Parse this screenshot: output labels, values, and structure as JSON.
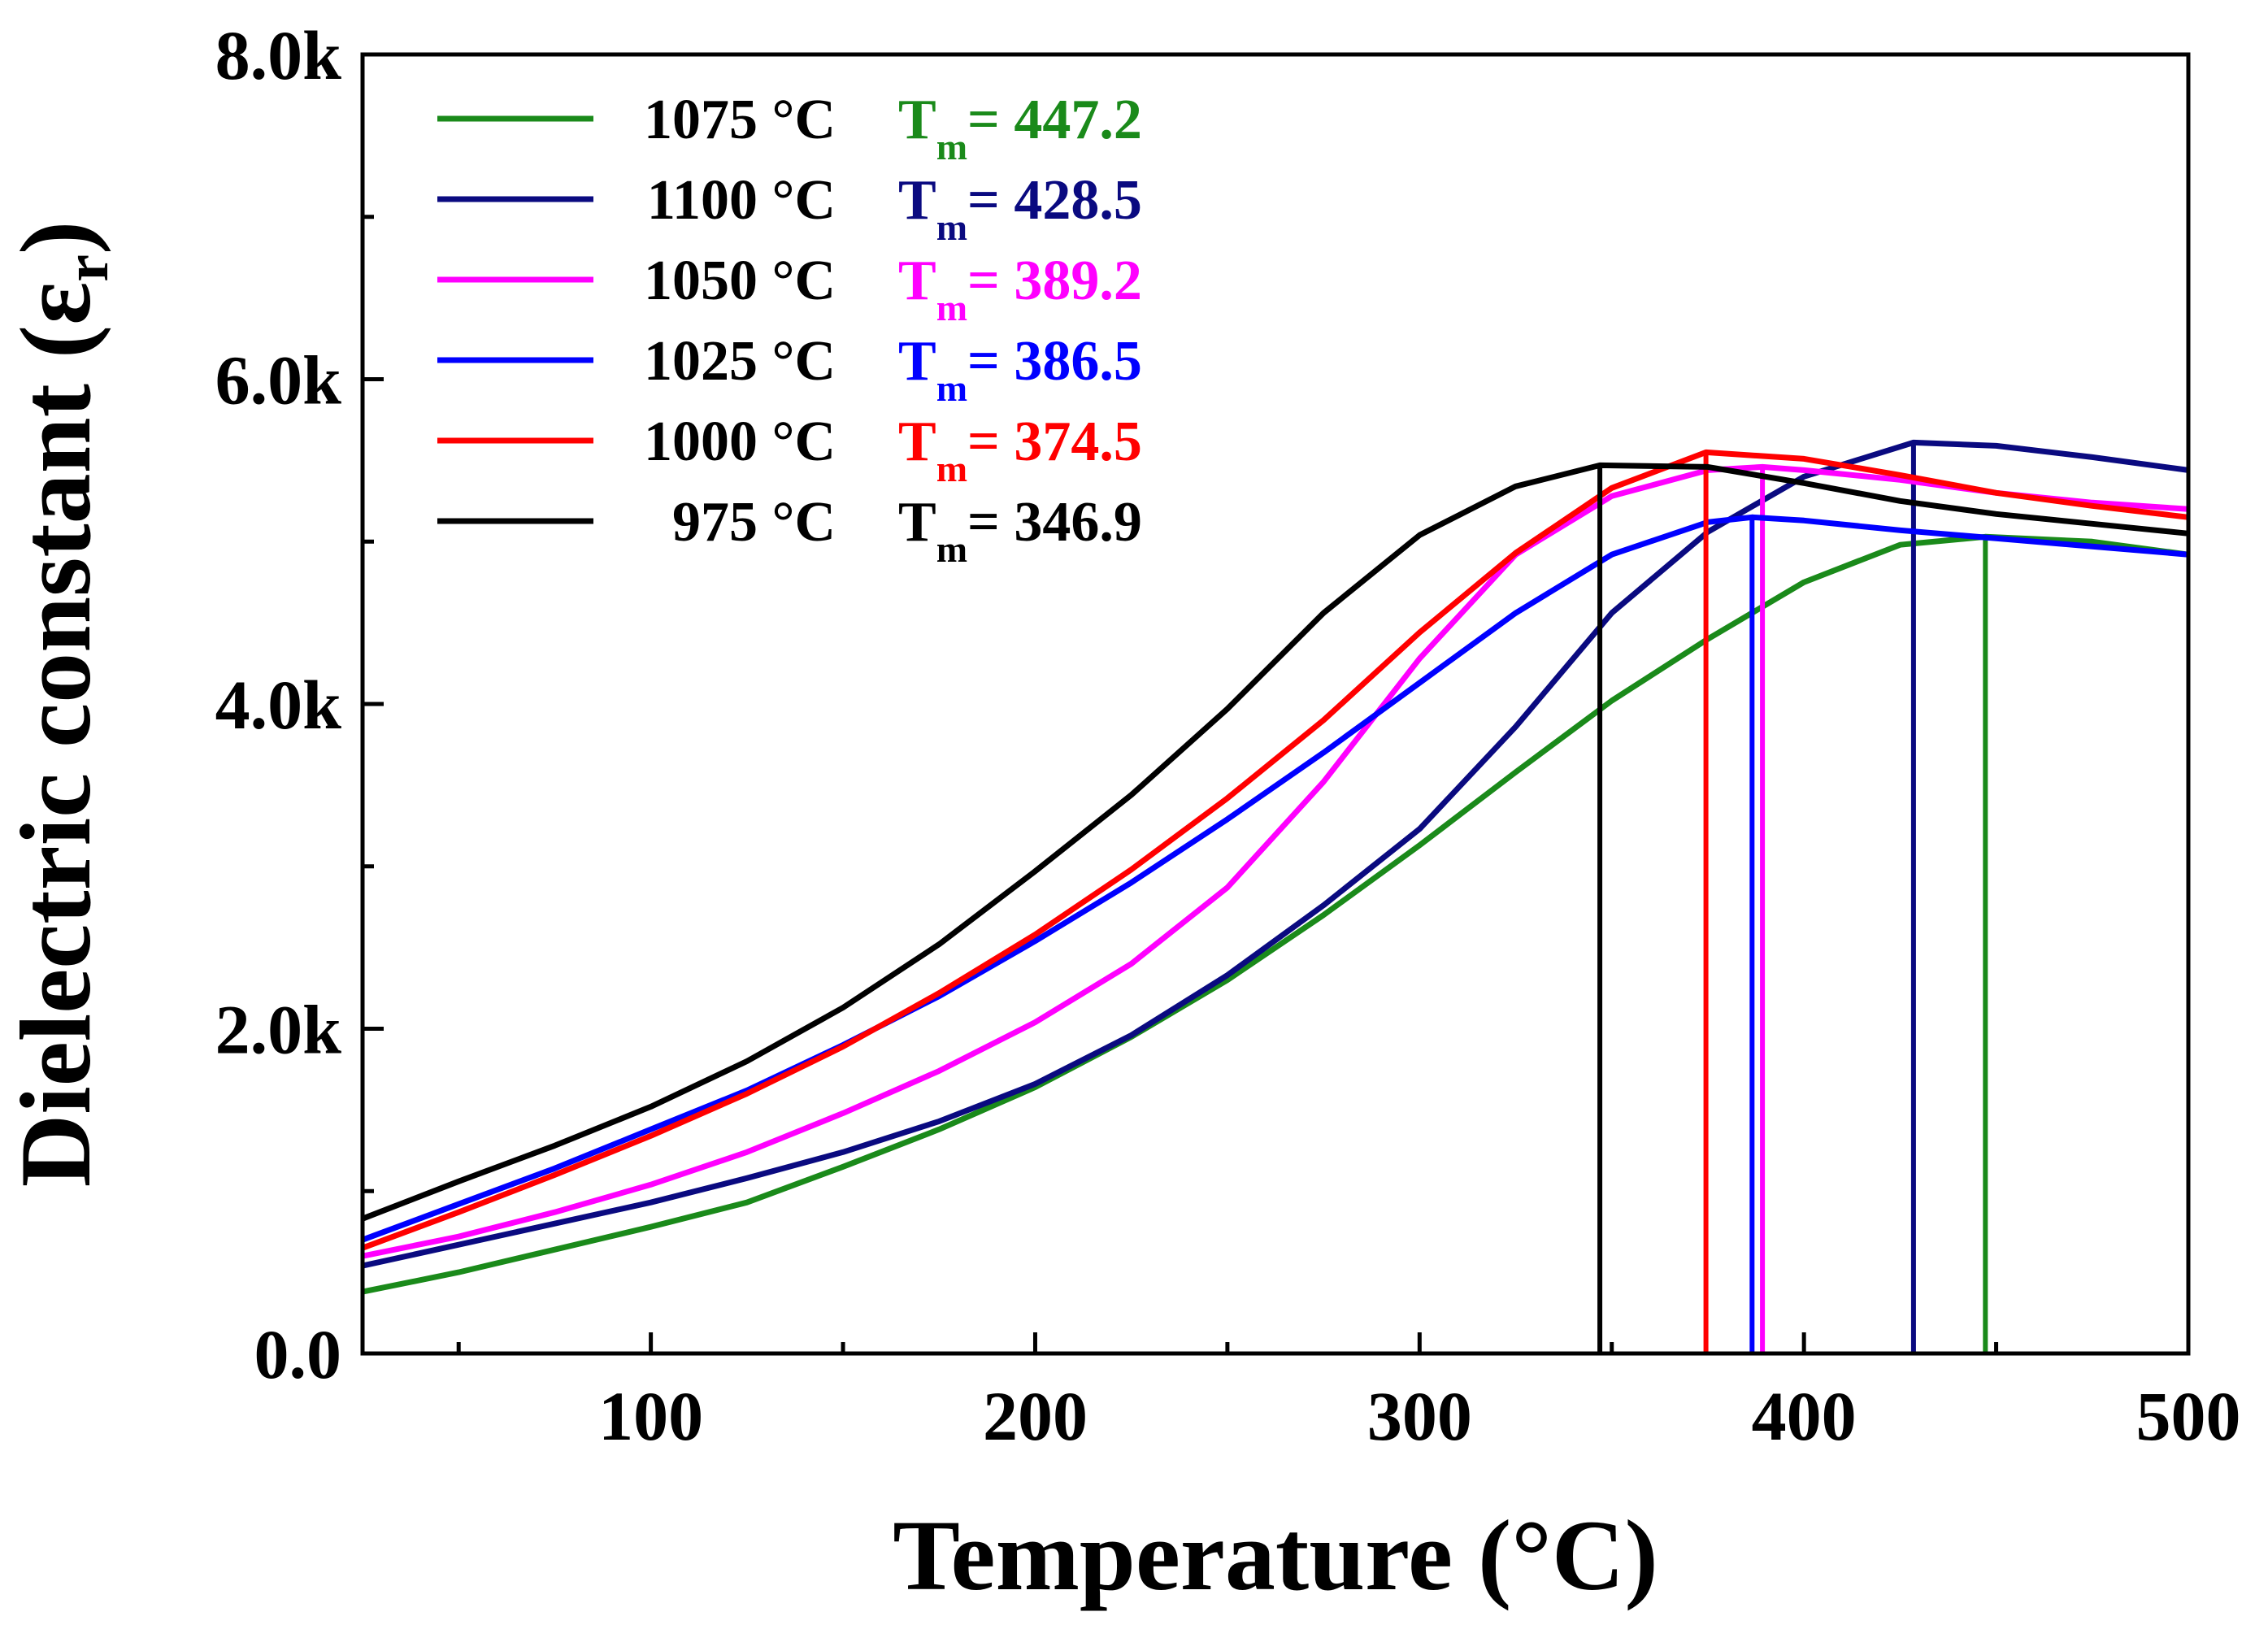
{
  "chart_data": {
    "type": "line",
    "title": "",
    "xlabel": "Temperature (°C)",
    "ylabel": "Dielectric constant (ε",
    "ylabel_sub": "r",
    "ylabel_close": ")",
    "xlim": [
      25,
      500
    ],
    "ylim": [
      0,
      8000
    ],
    "x_ticks": [
      100,
      200,
      300,
      400,
      500
    ],
    "x_tick_labels": [
      "100",
      "200",
      "300",
      "400",
      "500"
    ],
    "y_ticks": [
      0,
      2000,
      4000,
      6000,
      8000
    ],
    "y_tick_labels": [
      "0.0",
      "2.0k",
      "4.0k",
      "6.0k",
      "8.0k"
    ],
    "legend_position": "top-left",
    "series": [
      {
        "name": "1075 °C",
        "tm_label": "T",
        "tm_sub": "m",
        "tm_value": "= 447.2",
        "tm": 447.2,
        "color": "#1a8a1a",
        "points": [
          [
            25,
            380
          ],
          [
            50,
            500
          ],
          [
            75,
            640
          ],
          [
            100,
            780
          ],
          [
            125,
            930
          ],
          [
            150,
            1150
          ],
          [
            175,
            1380
          ],
          [
            200,
            1640
          ],
          [
            225,
            1950
          ],
          [
            250,
            2300
          ],
          [
            275,
            2700
          ],
          [
            300,
            3130
          ],
          [
            325,
            3580
          ],
          [
            350,
            4020
          ],
          [
            375,
            4400
          ],
          [
            400,
            4750
          ],
          [
            425,
            4980
          ],
          [
            447.2,
            5030
          ],
          [
            475,
            5000
          ],
          [
            500,
            4920
          ]
        ]
      },
      {
        "name": "1100 °C",
        "tm_label": "T",
        "tm_sub": "m",
        "tm_value": "= 428.5",
        "tm": 428.5,
        "color": "#0a0a80",
        "points": [
          [
            25,
            540
          ],
          [
            50,
            670
          ],
          [
            75,
            800
          ],
          [
            100,
            930
          ],
          [
            125,
            1080
          ],
          [
            150,
            1240
          ],
          [
            175,
            1430
          ],
          [
            200,
            1660
          ],
          [
            225,
            1960
          ],
          [
            250,
            2330
          ],
          [
            275,
            2760
          ],
          [
            300,
            3230
          ],
          [
            325,
            3860
          ],
          [
            350,
            4560
          ],
          [
            375,
            5060
          ],
          [
            400,
            5400
          ],
          [
            428.5,
            5610
          ],
          [
            450,
            5590
          ],
          [
            475,
            5520
          ],
          [
            500,
            5440
          ]
        ]
      },
      {
        "name": "1050 °C",
        "tm_label": "T",
        "tm_sub": "m",
        "tm_value": "= 389.2",
        "tm": 389.2,
        "color": "#ff00ff",
        "points": [
          [
            25,
            600
          ],
          [
            50,
            720
          ],
          [
            75,
            870
          ],
          [
            100,
            1040
          ],
          [
            125,
            1240
          ],
          [
            150,
            1480
          ],
          [
            175,
            1740
          ],
          [
            200,
            2040
          ],
          [
            225,
            2400
          ],
          [
            250,
            2870
          ],
          [
            275,
            3520
          ],
          [
            300,
            4280
          ],
          [
            325,
            4920
          ],
          [
            350,
            5280
          ],
          [
            375,
            5440
          ],
          [
            389.2,
            5460
          ],
          [
            400,
            5440
          ],
          [
            425,
            5380
          ],
          [
            450,
            5300
          ],
          [
            475,
            5240
          ],
          [
            500,
            5200
          ]
        ]
      },
      {
        "name": "1025 °C",
        "tm_label": "T",
        "tm_sub": "m",
        "tm_value": "= 386.5",
        "tm": 386.5,
        "color": "#0000ff",
        "points": [
          [
            25,
            700
          ],
          [
            50,
            920
          ],
          [
            75,
            1140
          ],
          [
            100,
            1380
          ],
          [
            125,
            1620
          ],
          [
            150,
            1900
          ],
          [
            175,
            2200
          ],
          [
            200,
            2540
          ],
          [
            225,
            2900
          ],
          [
            250,
            3290
          ],
          [
            275,
            3700
          ],
          [
            300,
            4130
          ],
          [
            325,
            4560
          ],
          [
            350,
            4920
          ],
          [
            375,
            5120
          ],
          [
            386.5,
            5150
          ],
          [
            400,
            5130
          ],
          [
            425,
            5070
          ],
          [
            450,
            5020
          ],
          [
            475,
            4970
          ],
          [
            500,
            4920
          ]
        ]
      },
      {
        "name": "1000 °C",
        "tm_label": "T",
        "tm_sub": "m",
        "tm_value": "= 374.5",
        "tm": 374.5,
        "color": "#ff0000",
        "points": [
          [
            25,
            650
          ],
          [
            50,
            870
          ],
          [
            75,
            1100
          ],
          [
            100,
            1340
          ],
          [
            125,
            1600
          ],
          [
            150,
            1890
          ],
          [
            175,
            2220
          ],
          [
            200,
            2580
          ],
          [
            225,
            2980
          ],
          [
            250,
            3420
          ],
          [
            275,
            3900
          ],
          [
            300,
            4440
          ],
          [
            325,
            4930
          ],
          [
            350,
            5330
          ],
          [
            374.5,
            5550
          ],
          [
            400,
            5510
          ],
          [
            425,
            5410
          ],
          [
            450,
            5300
          ],
          [
            475,
            5220
          ],
          [
            500,
            5150
          ]
        ]
      },
      {
        "name": "975 °C",
        "tm_label": "T",
        "tm_sub": "m",
        "tm_value": "= 346.9",
        "tm": 346.9,
        "color": "#000000",
        "points": [
          [
            25,
            830
          ],
          [
            50,
            1060
          ],
          [
            75,
            1280
          ],
          [
            100,
            1520
          ],
          [
            125,
            1800
          ],
          [
            150,
            2130
          ],
          [
            175,
            2520
          ],
          [
            200,
            2970
          ],
          [
            225,
            3440
          ],
          [
            250,
            3970
          ],
          [
            275,
            4560
          ],
          [
            300,
            5040
          ],
          [
            325,
            5340
          ],
          [
            346.9,
            5470
          ],
          [
            375,
            5460
          ],
          [
            400,
            5360
          ],
          [
            425,
            5250
          ],
          [
            450,
            5170
          ],
          [
            475,
            5110
          ],
          [
            500,
            5050
          ]
        ]
      }
    ]
  }
}
